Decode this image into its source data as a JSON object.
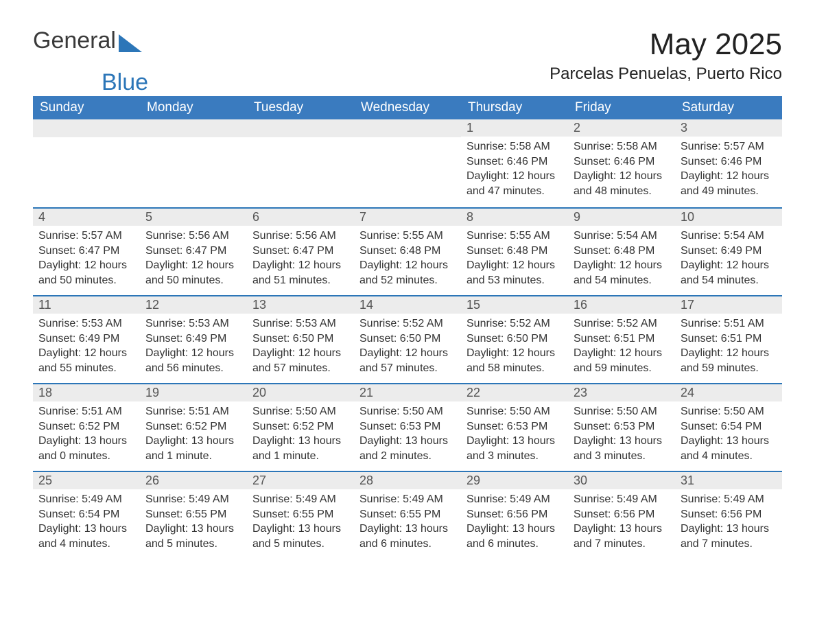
{
  "brand": {
    "text1": "General",
    "text2": "Blue",
    "shape_color": "#2c76b8",
    "text1_color": "#3a3a3a",
    "text2_color": "#2c76b8"
  },
  "title": "May 2025",
  "subtitle": "Parcelas Penuelas, Puerto Rico",
  "colors": {
    "header_bg": "#3a7bbf",
    "header_text": "#ffffff",
    "daybar_bg": "#ececec",
    "daybar_border": "#2c76b8",
    "body_bg": "#ffffff",
    "text": "#333333"
  },
  "fontsize": {
    "title": 44,
    "subtitle": 24,
    "weekday": 19,
    "daynum": 18,
    "body": 16
  },
  "weekdays": [
    "Sunday",
    "Monday",
    "Tuesday",
    "Wednesday",
    "Thursday",
    "Friday",
    "Saturday"
  ],
  "first_day_column": 4,
  "days": [
    {
      "n": 1,
      "sunrise": "5:58 AM",
      "sunset": "6:46 PM",
      "daylight": "12 hours and 47 minutes."
    },
    {
      "n": 2,
      "sunrise": "5:58 AM",
      "sunset": "6:46 PM",
      "daylight": "12 hours and 48 minutes."
    },
    {
      "n": 3,
      "sunrise": "5:57 AM",
      "sunset": "6:46 PM",
      "daylight": "12 hours and 49 minutes."
    },
    {
      "n": 4,
      "sunrise": "5:57 AM",
      "sunset": "6:47 PM",
      "daylight": "12 hours and 50 minutes."
    },
    {
      "n": 5,
      "sunrise": "5:56 AM",
      "sunset": "6:47 PM",
      "daylight": "12 hours and 50 minutes."
    },
    {
      "n": 6,
      "sunrise": "5:56 AM",
      "sunset": "6:47 PM",
      "daylight": "12 hours and 51 minutes."
    },
    {
      "n": 7,
      "sunrise": "5:55 AM",
      "sunset": "6:48 PM",
      "daylight": "12 hours and 52 minutes."
    },
    {
      "n": 8,
      "sunrise": "5:55 AM",
      "sunset": "6:48 PM",
      "daylight": "12 hours and 53 minutes."
    },
    {
      "n": 9,
      "sunrise": "5:54 AM",
      "sunset": "6:48 PM",
      "daylight": "12 hours and 54 minutes."
    },
    {
      "n": 10,
      "sunrise": "5:54 AM",
      "sunset": "6:49 PM",
      "daylight": "12 hours and 54 minutes."
    },
    {
      "n": 11,
      "sunrise": "5:53 AM",
      "sunset": "6:49 PM",
      "daylight": "12 hours and 55 minutes."
    },
    {
      "n": 12,
      "sunrise": "5:53 AM",
      "sunset": "6:49 PM",
      "daylight": "12 hours and 56 minutes."
    },
    {
      "n": 13,
      "sunrise": "5:53 AM",
      "sunset": "6:50 PM",
      "daylight": "12 hours and 57 minutes."
    },
    {
      "n": 14,
      "sunrise": "5:52 AM",
      "sunset": "6:50 PM",
      "daylight": "12 hours and 57 minutes."
    },
    {
      "n": 15,
      "sunrise": "5:52 AM",
      "sunset": "6:50 PM",
      "daylight": "12 hours and 58 minutes."
    },
    {
      "n": 16,
      "sunrise": "5:52 AM",
      "sunset": "6:51 PM",
      "daylight": "12 hours and 59 minutes."
    },
    {
      "n": 17,
      "sunrise": "5:51 AM",
      "sunset": "6:51 PM",
      "daylight": "12 hours and 59 minutes."
    },
    {
      "n": 18,
      "sunrise": "5:51 AM",
      "sunset": "6:52 PM",
      "daylight": "13 hours and 0 minutes."
    },
    {
      "n": 19,
      "sunrise": "5:51 AM",
      "sunset": "6:52 PM",
      "daylight": "13 hours and 1 minute."
    },
    {
      "n": 20,
      "sunrise": "5:50 AM",
      "sunset": "6:52 PM",
      "daylight": "13 hours and 1 minute."
    },
    {
      "n": 21,
      "sunrise": "5:50 AM",
      "sunset": "6:53 PM",
      "daylight": "13 hours and 2 minutes."
    },
    {
      "n": 22,
      "sunrise": "5:50 AM",
      "sunset": "6:53 PM",
      "daylight": "13 hours and 3 minutes."
    },
    {
      "n": 23,
      "sunrise": "5:50 AM",
      "sunset": "6:53 PM",
      "daylight": "13 hours and 3 minutes."
    },
    {
      "n": 24,
      "sunrise": "5:50 AM",
      "sunset": "6:54 PM",
      "daylight": "13 hours and 4 minutes."
    },
    {
      "n": 25,
      "sunrise": "5:49 AM",
      "sunset": "6:54 PM",
      "daylight": "13 hours and 4 minutes."
    },
    {
      "n": 26,
      "sunrise": "5:49 AM",
      "sunset": "6:55 PM",
      "daylight": "13 hours and 5 minutes."
    },
    {
      "n": 27,
      "sunrise": "5:49 AM",
      "sunset": "6:55 PM",
      "daylight": "13 hours and 5 minutes."
    },
    {
      "n": 28,
      "sunrise": "5:49 AM",
      "sunset": "6:55 PM",
      "daylight": "13 hours and 6 minutes."
    },
    {
      "n": 29,
      "sunrise": "5:49 AM",
      "sunset": "6:56 PM",
      "daylight": "13 hours and 6 minutes."
    },
    {
      "n": 30,
      "sunrise": "5:49 AM",
      "sunset": "6:56 PM",
      "daylight": "13 hours and 7 minutes."
    },
    {
      "n": 31,
      "sunrise": "5:49 AM",
      "sunset": "6:56 PM",
      "daylight": "13 hours and 7 minutes."
    }
  ],
  "labels": {
    "sunrise": "Sunrise",
    "sunset": "Sunset",
    "daylight": "Daylight"
  }
}
